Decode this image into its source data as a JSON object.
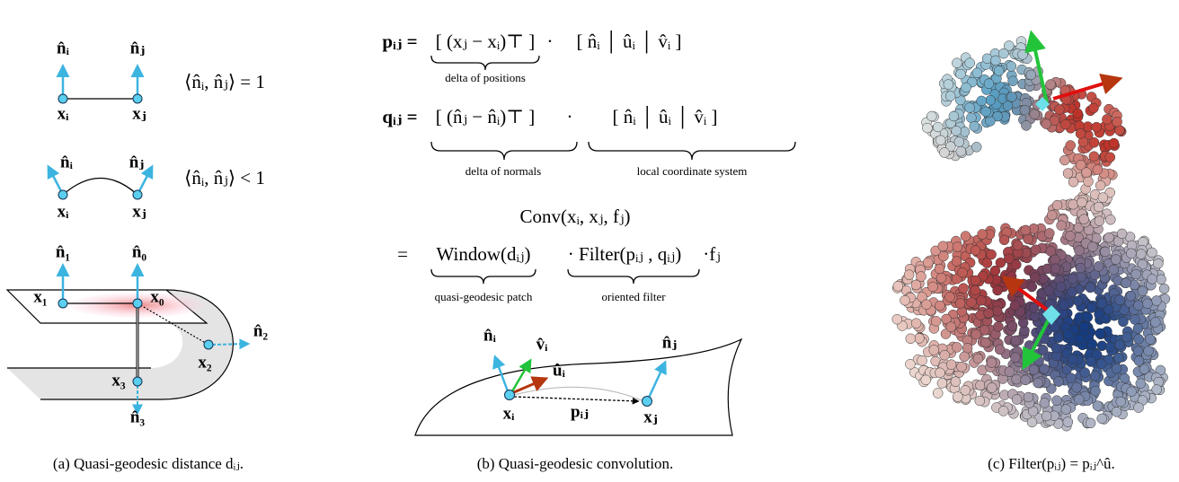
{
  "panel_a": {
    "top": {
      "n_i": "n̂ᵢ",
      "n_j": "n̂ⱼ",
      "x_i": "xᵢ",
      "x_j": "xⱼ",
      "relation": "⟨n̂ᵢ, n̂ⱼ⟩ = 1"
    },
    "middle": {
      "n_i": "n̂ᵢ",
      "n_j": "n̂ⱼ",
      "x_i": "xᵢ",
      "x_j": "xⱼ",
      "relation": "⟨n̂ᵢ, n̂ⱼ⟩ < 1"
    },
    "bottom": {
      "n_1": "n̂₁",
      "n_0": "n̂₀",
      "x_1": "x₁",
      "x_0": "x₀",
      "n_2": "n̂₂",
      "x_2": "x₂",
      "x_3": "x₃",
      "n_3": "n̂₃"
    },
    "caption": "(a) Quasi-geodesic distance dᵢⱼ."
  },
  "panel_b": {
    "equation_p": [
      "pᵢⱼ =",
      "[  (xⱼ − xᵢ)⊤  ]",
      "·",
      "[  n̂ᵢ │ ûᵢ │ v̂ᵢ  ]"
    ],
    "equation_q": [
      "qᵢⱼ =",
      "[  (n̂ⱼ − n̂ᵢ)⊤  ]",
      "·",
      "[  n̂ᵢ │ ûᵢ │ v̂ᵢ  ]"
    ],
    "brace_labels": [
      "delta of positions",
      "delta of normals",
      "local coordinate system"
    ],
    "conv": "Conv(xᵢ, xⱼ, fⱼ)",
    "conv_rhs": [
      "=",
      "Window(dᵢⱼ)",
      "· Filter(pᵢⱼ , qᵢⱼ)",
      "·fⱼ"
    ],
    "conv_labels": [
      "quasi-geodesic patch",
      "oriented filter"
    ],
    "diagram": {
      "n_i": "n̂ᵢ",
      "v_i": "v̂ᵢ",
      "u_i": "ûᵢ",
      "x_i": "xᵢ",
      "p_ij": "pᵢⱼ",
      "n_j": "n̂ⱼ",
      "x_j": "xⱼ"
    },
    "caption": "(b) Quasi-geodesic convolution."
  },
  "panel_c": {
    "caption": "(c) Filter(pᵢⱼ) = pᵢⱼ^û."
  }
}
